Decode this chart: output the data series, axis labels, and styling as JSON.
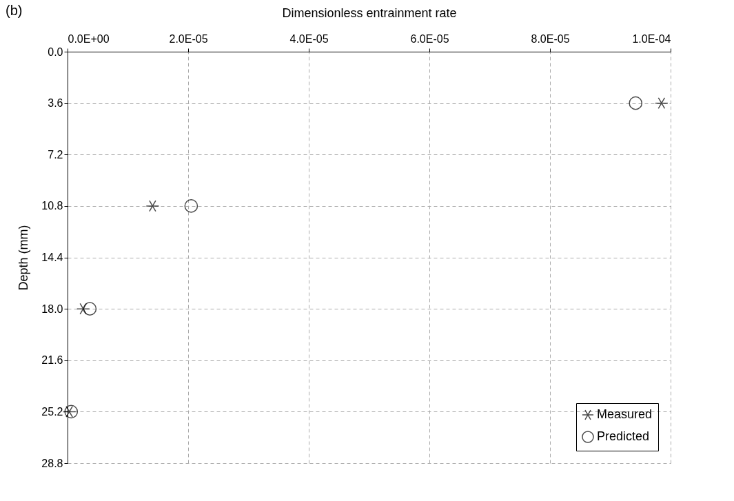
{
  "chart_data": {
    "type": "scatter",
    "xlabel": "Dimensionless entrainment rate",
    "ylabel": "Depth (mm)",
    "annotations": [
      "(b)"
    ],
    "xlim": [
      0,
      0.0001
    ],
    "xticks": [
      {
        "value": 0,
        "label": "0.0E+00"
      },
      {
        "value": 2e-05,
        "label": "2.0E-05"
      },
      {
        "value": 4e-05,
        "label": "4.0E-05"
      },
      {
        "value": 6e-05,
        "label": "6.0E-05"
      },
      {
        "value": 8e-05,
        "label": "8.0E-05"
      },
      {
        "value": 0.0001,
        "label": "1.0E-04"
      }
    ],
    "ylim": [
      28.8,
      0
    ],
    "yticks": [
      {
        "value": 0,
        "label": "0.0"
      },
      3.6,
      7.2,
      10.8,
      14.4,
      {
        "value": 18,
        "label": "18.0"
      },
      21.6,
      25.2,
      28.8
    ],
    "grid": true,
    "legend": "bottom right",
    "series": [
      {
        "name": "Measured",
        "color": "#000000",
        "marker": "cross",
        "x": [
          9.85e-05,
          1.41e-05,
          2.6e-06,
          3e-07
        ],
        "values": [
          3.6,
          10.8,
          18,
          25.2
        ]
      },
      {
        "name": "Predicted",
        "color": "#000000",
        "marker": "circle",
        "x": [
          9.42e-05,
          2.05e-05,
          3.7e-06,
          6e-07
        ],
        "values": [
          3.6,
          10.8,
          18,
          25.2
        ]
      }
    ]
  }
}
